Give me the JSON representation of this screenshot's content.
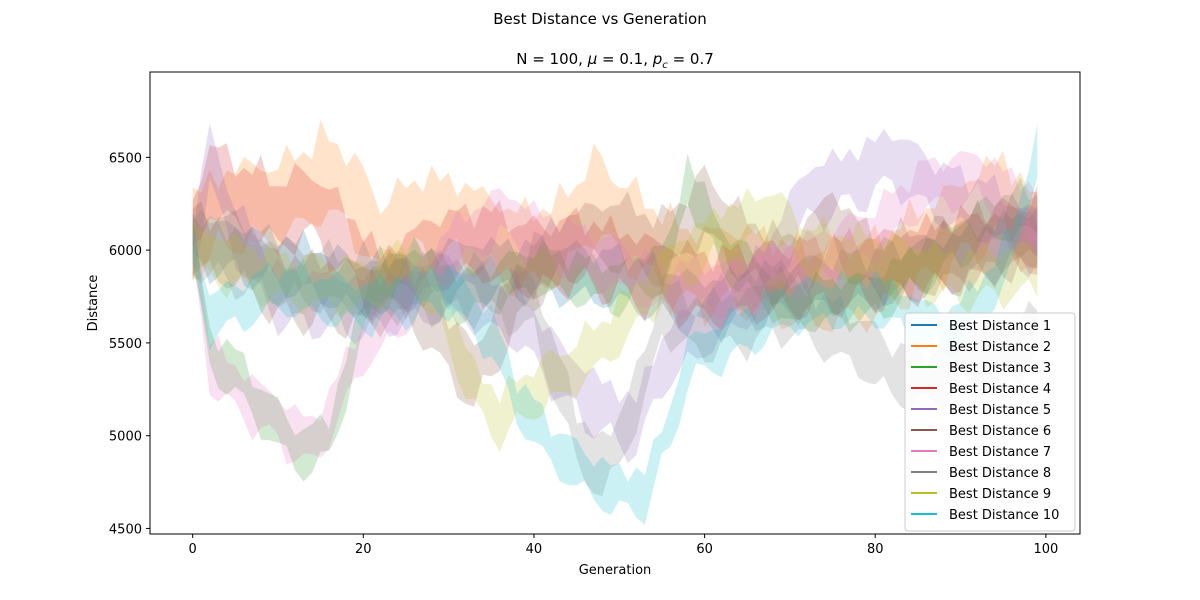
{
  "figure": {
    "suptitle": "Best Distance vs Generation",
    "title_parts": {
      "n": "N = 100, ",
      "mu_symbol": "μ",
      "mu_rest": " = 0.1, ",
      "pc_symbol": "p",
      "pc_sub": "c",
      "pc_rest": " = 0.7"
    }
  },
  "chart_data": {
    "type": "area",
    "title": "N = 100, μ = 0.1, p_c = 0.7",
    "suptitle": "Best Distance vs Generation",
    "xlabel": "Generation",
    "ylabel": "Distance",
    "xlim": [
      -5,
      104
    ],
    "ylim": [
      4470,
      6960
    ],
    "xticks": [
      0,
      20,
      40,
      60,
      80,
      100
    ],
    "yticks": [
      4500,
      5000,
      5500,
      6000,
      6500
    ],
    "legend_position": "lower-right",
    "band_opacity": 0.22,
    "series": [
      {
        "name": "Best Distance 1",
        "color": "#1f77b4",
        "center": [
          [
            0,
            6050
          ],
          [
            10,
            5950
          ],
          [
            20,
            5800
          ],
          [
            30,
            5900
          ],
          [
            40,
            5900
          ],
          [
            50,
            5850
          ],
          [
            60,
            5700
          ],
          [
            70,
            5800
          ],
          [
            80,
            5850
          ],
          [
            90,
            5950
          ],
          [
            99,
            6100
          ]
        ],
        "half_width": 130
      },
      {
        "name": "Best Distance 2",
        "color": "#ff7f0e",
        "center": [
          [
            0,
            6100
          ],
          [
            5,
            6250
          ],
          [
            10,
            6250
          ],
          [
            15,
            6400
          ],
          [
            18,
            6350
          ],
          [
            22,
            6050
          ],
          [
            27,
            6200
          ],
          [
            32,
            6150
          ],
          [
            38,
            6000
          ],
          [
            43,
            6050
          ],
          [
            47,
            6300
          ],
          [
            52,
            6100
          ],
          [
            58,
            5900
          ],
          [
            65,
            5900
          ],
          [
            72,
            5800
          ],
          [
            80,
            5850
          ],
          [
            88,
            6100
          ],
          [
            95,
            6300
          ],
          [
            99,
            6050
          ]
        ],
        "half_width": 200
      },
      {
        "name": "Best Distance 3",
        "color": "#2ca02c",
        "center": [
          [
            0,
            6050
          ],
          [
            2,
            5450
          ],
          [
            5,
            5350
          ],
          [
            8,
            5150
          ],
          [
            11,
            5000
          ],
          [
            13,
            4900
          ],
          [
            16,
            5000
          ],
          [
            18,
            5300
          ],
          [
            21,
            5800
          ],
          [
            26,
            5900
          ],
          [
            32,
            5750
          ],
          [
            40,
            5900
          ],
          [
            50,
            5800
          ],
          [
            56,
            5950
          ],
          [
            58,
            6400
          ],
          [
            62,
            6000
          ],
          [
            70,
            5700
          ],
          [
            80,
            5750
          ],
          [
            88,
            6000
          ],
          [
            95,
            6200
          ],
          [
            99,
            6200
          ]
        ],
        "half_width": 110
      },
      {
        "name": "Best Distance 4",
        "color": "#d62728",
        "center": [
          [
            0,
            6100
          ],
          [
            2,
            6400
          ],
          [
            5,
            6300
          ],
          [
            10,
            6200
          ],
          [
            14,
            6250
          ],
          [
            18,
            6050
          ],
          [
            22,
            5800
          ],
          [
            28,
            6000
          ],
          [
            34,
            6050
          ],
          [
            40,
            5950
          ],
          [
            45,
            6000
          ],
          [
            52,
            5900
          ],
          [
            60,
            5800
          ],
          [
            70,
            5850
          ],
          [
            80,
            5900
          ],
          [
            90,
            6000
          ],
          [
            99,
            6100
          ]
        ],
        "half_width": 170
      },
      {
        "name": "Best Distance 5",
        "color": "#9467bd",
        "center": [
          [
            0,
            6000
          ],
          [
            2,
            6500
          ],
          [
            5,
            6100
          ],
          [
            10,
            5750
          ],
          [
            20,
            5700
          ],
          [
            30,
            5800
          ],
          [
            38,
            5650
          ],
          [
            44,
            5300
          ],
          [
            48,
            5150
          ],
          [
            52,
            5050
          ],
          [
            55,
            5400
          ],
          [
            60,
            5600
          ],
          [
            66,
            5800
          ],
          [
            72,
            6300
          ],
          [
            78,
            6400
          ],
          [
            82,
            6500
          ],
          [
            88,
            6300
          ],
          [
            94,
            6200
          ],
          [
            99,
            6000
          ]
        ],
        "half_width": 140
      },
      {
        "name": "Best Distance 6",
        "color": "#8c564b",
        "center": [
          [
            0,
            6050
          ],
          [
            5,
            6000
          ],
          [
            10,
            5800
          ],
          [
            20,
            5750
          ],
          [
            25,
            5800
          ],
          [
            30,
            5500
          ],
          [
            33,
            5300
          ],
          [
            35,
            5500
          ],
          [
            40,
            5900
          ],
          [
            45,
            6050
          ],
          [
            50,
            6100
          ],
          [
            55,
            6000
          ],
          [
            60,
            6250
          ],
          [
            65,
            6000
          ],
          [
            70,
            5900
          ],
          [
            75,
            6150
          ],
          [
            80,
            5900
          ],
          [
            90,
            6000
          ],
          [
            99,
            6100
          ]
        ],
        "half_width": 160
      },
      {
        "name": "Best Distance 7",
        "color": "#e377c2",
        "center": [
          [
            0,
            6050
          ],
          [
            2,
            5400
          ],
          [
            5,
            5250
          ],
          [
            8,
            5150
          ],
          [
            11,
            5050
          ],
          [
            14,
            4950
          ],
          [
            17,
            5200
          ],
          [
            20,
            5500
          ],
          [
            25,
            5700
          ],
          [
            30,
            6000
          ],
          [
            36,
            6200
          ],
          [
            42,
            6050
          ],
          [
            48,
            5950
          ],
          [
            55,
            5800
          ],
          [
            62,
            5800
          ],
          [
            70,
            5900
          ],
          [
            80,
            6100
          ],
          [
            86,
            6350
          ],
          [
            92,
            6400
          ],
          [
            99,
            6200
          ]
        ],
        "half_width": 120
      },
      {
        "name": "Best Distance 8",
        "color": "#7f7f7f",
        "center": [
          [
            0,
            6050
          ],
          [
            5,
            5950
          ],
          [
            15,
            5850
          ],
          [
            25,
            5800
          ],
          [
            35,
            5800
          ],
          [
            40,
            5700
          ],
          [
            45,
            5000
          ],
          [
            48,
            4800
          ],
          [
            50,
            5000
          ],
          [
            53,
            5300
          ],
          [
            55,
            5700
          ],
          [
            58,
            5600
          ],
          [
            62,
            5600
          ],
          [
            70,
            5700
          ],
          [
            78,
            5500
          ],
          [
            82,
            5350
          ],
          [
            86,
            5300
          ],
          [
            90,
            5400
          ],
          [
            95,
            5450
          ],
          [
            99,
            5550
          ]
        ],
        "half_width": 140
      },
      {
        "name": "Best Distance 9",
        "color": "#bcbd22",
        "center": [
          [
            0,
            6000
          ],
          [
            10,
            5850
          ],
          [
            20,
            5800
          ],
          [
            26,
            5950
          ],
          [
            30,
            5600
          ],
          [
            33,
            5250
          ],
          [
            36,
            5100
          ],
          [
            40,
            5250
          ],
          [
            44,
            5350
          ],
          [
            48,
            5500
          ],
          [
            52,
            5700
          ],
          [
            56,
            5900
          ],
          [
            62,
            6100
          ],
          [
            68,
            6200
          ],
          [
            72,
            6000
          ],
          [
            80,
            5950
          ],
          [
            90,
            5850
          ],
          [
            99,
            5900
          ]
        ],
        "half_width": 120
      },
      {
        "name": "Best Distance 10",
        "color": "#17becf",
        "center": [
          [
            0,
            6000
          ],
          [
            2,
            5650
          ],
          [
            5,
            5700
          ],
          [
            10,
            5800
          ],
          [
            20,
            5700
          ],
          [
            30,
            5800
          ],
          [
            35,
            5550
          ],
          [
            38,
            5200
          ],
          [
            42,
            4950
          ],
          [
            46,
            4800
          ],
          [
            50,
            4700
          ],
          [
            53,
            4700
          ],
          [
            56,
            5050
          ],
          [
            58,
            5400
          ],
          [
            62,
            5500
          ],
          [
            70,
            5700
          ],
          [
            80,
            5750
          ],
          [
            88,
            5550
          ],
          [
            92,
            5700
          ],
          [
            96,
            6000
          ],
          [
            99,
            6550
          ]
        ],
        "half_width": 110
      }
    ]
  }
}
